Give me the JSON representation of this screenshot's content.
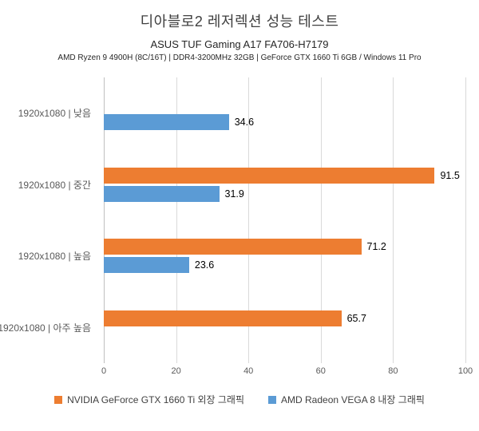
{
  "title": "디아블로2 레저렉션 성능 테스트",
  "subtitle1": "ASUS TUF Gaming A17 FA706-H7179",
  "subtitle2": "AMD Ryzen 9 4900H (8C/16T) | DDR4-3200MHz 32GB | GeForce GTX 1660 Ti 6GB / Windows 11 Pro",
  "colors": {
    "orange": "#ED7D31",
    "blue": "#5B9BD5",
    "gridline": "#D9D9D9",
    "axis_text": "#595959",
    "value_text": "#000000"
  },
  "chart_data": {
    "type": "bar",
    "orientation": "horizontal",
    "title": "디아블로2 레저렉션 성능 테스트",
    "categories": [
      "1920x1080 | 낮음",
      "1920x1080 | 중간",
      "1920x1080 | 높음",
      "1920x1080 | 아주 높음"
    ],
    "series": [
      {
        "name": "NVIDIA GeForce GTX 1660 Ti 외장 그래픽",
        "color": "#ED7D31",
        "values": [
          null,
          91.5,
          71.2,
          65.7
        ]
      },
      {
        "name": "AMD Radeon VEGA 8 내장 그래픽",
        "color": "#5B9BD5",
        "values": [
          34.6,
          31.9,
          23.6,
          null
        ]
      }
    ],
    "xlim": [
      0,
      100
    ],
    "xticks": [
      0,
      20,
      40,
      60,
      80,
      100
    ],
    "grid": true,
    "legend_position": "bottom"
  }
}
